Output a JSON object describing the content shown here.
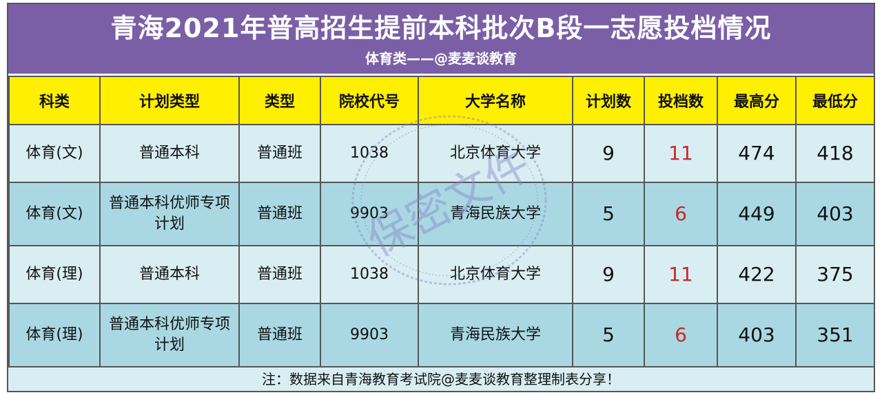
{
  "title": "青海2021年普高招生提前本科批次B段一志愿投档情况",
  "subtitle": "体育类——@麦麦谈教育",
  "columns": [
    "科类",
    "计划类型",
    "类型",
    "院校代号",
    "大学名称",
    "计划数",
    "投档数",
    "最高分",
    "最低分"
  ],
  "rows": [
    {
      "subject": "体育(文)",
      "plan_type": "普通本科",
      "class_type": "普通班",
      "code": "1038",
      "university": "北京体育大学",
      "plan": "9",
      "admitted": "11",
      "max": "474",
      "min": "418"
    },
    {
      "subject": "体育(文)",
      "plan_type": "普通本科优师专项计划",
      "class_type": "普通班",
      "code": "9903",
      "university": "青海民族大学",
      "plan": "5",
      "admitted": "6",
      "max": "449",
      "min": "403"
    },
    {
      "subject": "体育(理)",
      "plan_type": "普通本科",
      "class_type": "普通班",
      "code": "1038",
      "university": "北京体育大学",
      "plan": "9",
      "admitted": "11",
      "max": "422",
      "min": "375"
    },
    {
      "subject": "体育(理)",
      "plan_type": "普通本科优师专项计划",
      "class_type": "普通班",
      "code": "9903",
      "university": "青海民族大学",
      "plan": "5",
      "admitted": "6",
      "max": "403",
      "min": "351"
    }
  ],
  "footer": "注：数据来自青海教育考试院@麦麦谈教育整理制表分享！",
  "watermark": "保密文件",
  "colors": {
    "header_band": "#7b5fa6",
    "column_header": "#ffef00",
    "row_light": "#d9eef2",
    "row_dark": "#a9d8e3",
    "admitted_text": "#c62828"
  }
}
